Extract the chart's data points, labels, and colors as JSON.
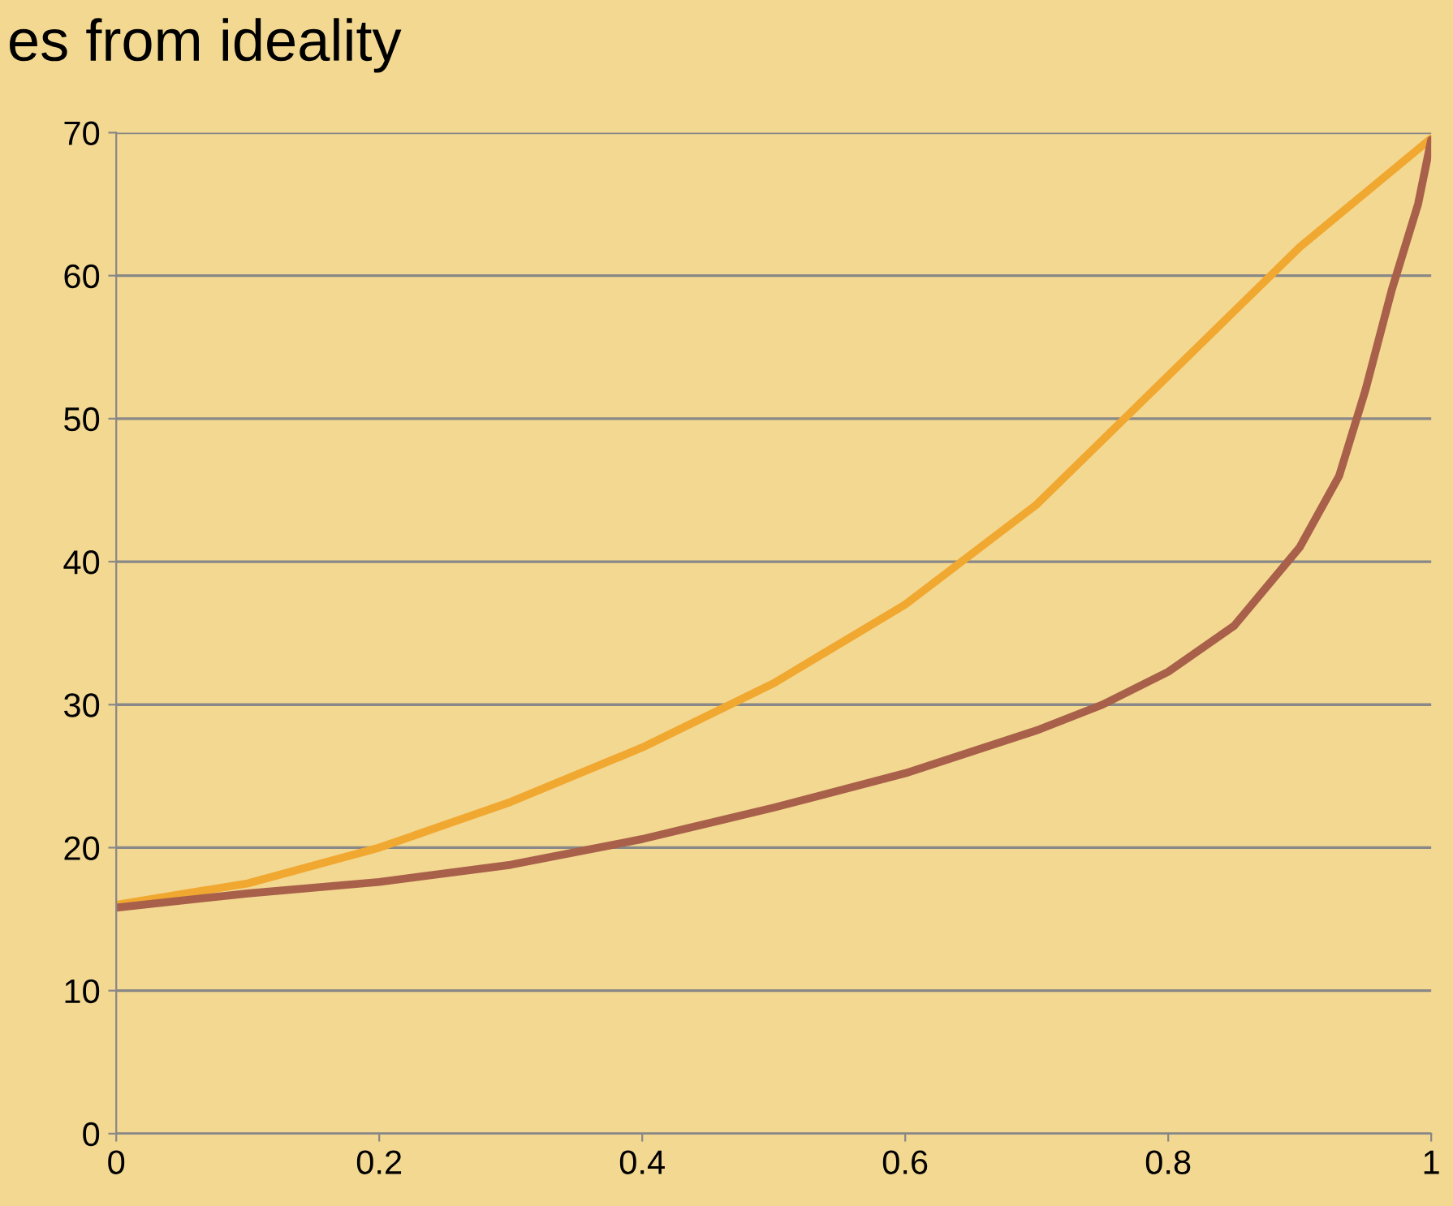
{
  "chart_data": {
    "type": "line",
    "title": "es from ideality",
    "xlim": [
      0,
      1
    ],
    "xticks": [
      0,
      0.2,
      0.4,
      0.6,
      0.8,
      1
    ],
    "ylim": [
      0,
      70
    ],
    "yticks": [
      0,
      10,
      20,
      30,
      40,
      50,
      60,
      70
    ],
    "grid": "y",
    "series": [
      {
        "color": "#f0a830",
        "x": [
          0,
          0.1,
          0.2,
          0.3,
          0.4,
          0.5,
          0.6,
          0.7,
          0.8,
          0.9,
          1
        ],
        "values": [
          16,
          17.5,
          20,
          23.2,
          27,
          31.5,
          37,
          44,
          53,
          62,
          69.6
        ]
      },
      {
        "color": "#a8604a",
        "x": [
          0,
          0.1,
          0.2,
          0.3,
          0.4,
          0.5,
          0.6,
          0.7,
          0.75,
          0.8,
          0.85,
          0.9,
          0.93,
          0.95,
          0.97,
          0.99,
          1
        ],
        "values": [
          15.8,
          16.8,
          17.6,
          18.8,
          20.6,
          22.8,
          25.2,
          28.2,
          30,
          32.3,
          35.5,
          41,
          46,
          52,
          59,
          65,
          69.5
        ]
      }
    ]
  }
}
